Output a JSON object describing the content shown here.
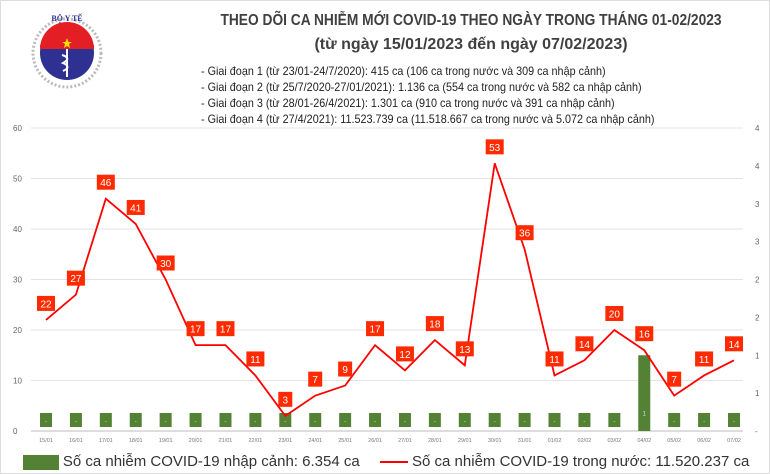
{
  "header": {
    "logo_text": "BỘ Y TẾ - MINISTRY OF HEALTH",
    "title": "THEO DÕI CA NHIỄM MỚI COVID-19 THEO NGÀY TRONG THÁNG 01-02/2023",
    "subtitle": "(từ ngày 15/01/2023 đến ngày 07/02/2023)",
    "notes": [
      "- Giai đoạn 1 (từ 23/01-24/7/2020): 415 ca (106 ca trong nước và 309 ca nhập cảnh)",
      "- Giai đoạn 2 (từ 25/7/2020-27/01/2021): 1.136 ca (554 ca trong nước và 582 ca nhập cảnh)",
      "- Giai đoạn 3 (từ 28/01-26/4/2021): 1.301 ca (910 ca trong nước và 391 ca nhập cảnh)",
      "- Giai đoạn 4 (từ 27/4/2021): 11.523.739 ca (11.518.667 ca trong nước và 5.072 ca nhập cảnh)"
    ]
  },
  "chart_data": {
    "type": "bar+line",
    "categories": [
      "15/01",
      "16/01",
      "17/01",
      "18/01",
      "19/01",
      "20/01",
      "21/01",
      "22/01",
      "23/01",
      "24/01",
      "25/01",
      "26/01",
      "27/01",
      "28/01",
      "29/01",
      "30/01",
      "31/01",
      "01/02",
      "02/02",
      "03/02",
      "04/02",
      "05/02",
      "06/02",
      "07/02"
    ],
    "series": [
      {
        "name": "Số ca nhiễm COVID-19 nhập cảnh: 6.354 ca",
        "type": "bar",
        "axis": "right",
        "color": "#548235",
        "values": [
          0,
          0,
          0,
          0,
          0,
          0,
          0,
          0,
          0,
          0,
          0,
          0,
          0,
          0,
          0,
          0,
          0,
          0,
          0,
          0,
          1,
          0,
          0,
          0
        ]
      },
      {
        "name": "Số ca nhiễm COVID-19 trong nước: 11.520.237 ca",
        "type": "line",
        "axis": "left",
        "color": "#ff0000",
        "values": [
          22,
          27,
          46,
          41,
          30,
          17,
          17,
          11,
          3,
          7,
          9,
          17,
          12,
          18,
          13,
          53,
          36,
          11,
          14,
          20,
          16,
          7,
          11,
          14
        ]
      }
    ],
    "left_axis": {
      "ylim": [
        0,
        60
      ],
      "ticks": [
        0,
        10,
        20,
        30,
        40,
        50,
        60
      ]
    },
    "right_axis": {
      "ylim": [
        0,
        4
      ],
      "tick_labels": [
        "-",
        "1",
        "1",
        "2",
        "2",
        "3",
        "3",
        "4",
        "4"
      ]
    },
    "grid": true,
    "legend": "bottom"
  }
}
